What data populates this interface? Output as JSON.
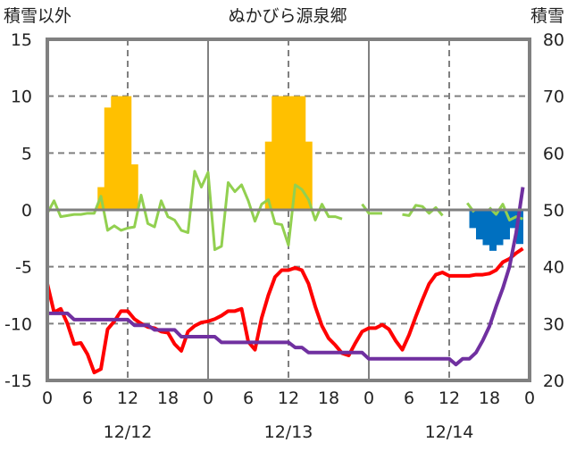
{
  "chart_data": {
    "type": "bar+line",
    "title": "ぬかびら源泉郷",
    "left_axis_title": "積雪以外",
    "right_axis_title": "積雪",
    "left_ylim": [
      -15,
      15
    ],
    "left_ticks": [
      15,
      10,
      5,
      0,
      -5,
      -10,
      -15
    ],
    "right_ylim": [
      20,
      80
    ],
    "right_ticks": [
      80,
      70,
      60,
      50,
      40,
      30,
      20
    ],
    "x_range_hours": [
      0,
      72
    ],
    "x_ticks": [
      {
        "hour": 0,
        "label": "0"
      },
      {
        "hour": 6,
        "label": "6"
      },
      {
        "hour": 12,
        "label": "12"
      },
      {
        "hour": 18,
        "label": "18"
      },
      {
        "hour": 24,
        "label": "0"
      },
      {
        "hour": 30,
        "label": "6"
      },
      {
        "hour": 36,
        "label": "12"
      },
      {
        "hour": 42,
        "label": "18"
      },
      {
        "hour": 48,
        "label": "0"
      },
      {
        "hour": 54,
        "label": "6"
      },
      {
        "hour": 60,
        "label": "12"
      },
      {
        "hour": 66,
        "label": "18"
      },
      {
        "hour": 72,
        "label": "0"
      }
    ],
    "date_labels": [
      {
        "hour": 12,
        "label": "12/12"
      },
      {
        "hour": 36,
        "label": "12/13"
      },
      {
        "hour": 60,
        "label": "12/14"
      }
    ],
    "colors": {
      "orange_bars": "#FFC000",
      "blue_bars": "#0070C0",
      "green": "#92D050",
      "red": "#FF0000",
      "purple": "#7030A0",
      "grid": "#808080"
    },
    "orange_bars": [
      {
        "hour": 8,
        "value": 2
      },
      {
        "hour": 9,
        "value": 9
      },
      {
        "hour": 10,
        "value": 10
      },
      {
        "hour": 11,
        "value": 10
      },
      {
        "hour": 12,
        "value": 10
      },
      {
        "hour": 13,
        "value": 4
      },
      {
        "hour": 33,
        "value": 6
      },
      {
        "hour": 34,
        "value": 10
      },
      {
        "hour": 35,
        "value": 10
      },
      {
        "hour": 36,
        "value": 10
      },
      {
        "hour": 37,
        "value": 10
      },
      {
        "hour": 38,
        "value": 10
      },
      {
        "hour": 39,
        "value": 6
      }
    ],
    "blue_bars": [
      {
        "hour": 64,
        "value": -1.6
      },
      {
        "hour": 65,
        "value": -2.6
      },
      {
        "hour": 66,
        "value": -3.1
      },
      {
        "hour": 67,
        "value": -3.6
      },
      {
        "hour": 68,
        "value": -3.1
      },
      {
        "hour": 69,
        "value": -2.6
      },
      {
        "hour": 70,
        "value": -1.6
      },
      {
        "hour": 71,
        "value": -3.0
      }
    ],
    "green_series": [
      [
        -0.3,
        0.8,
        -0.6,
        -0.5,
        -0.4,
        -0.4,
        -0.3,
        -0.3,
        1.2,
        -1.8,
        -1.4,
        -1.8,
        -1.6,
        -1.5,
        1.3,
        -1.2,
        -1.5,
        0.8,
        -0.6,
        -0.9,
        -1.8,
        -2.0,
        3.4,
        2.0,
        3.3,
        -3.5,
        -3.2,
        2.4,
        1.6,
        2.2,
        0.8,
        -1.0,
        0.5,
        0.9,
        -1.2,
        -1.3,
        -3.1,
        2.2,
        1.8,
        0.9,
        -0.9,
        0.5,
        -0.6,
        -0.6,
        -0.8
      ]
    ],
    "green_segments": [
      {
        "start": 0,
        "values": [
          -0.3,
          0.8,
          -0.6,
          -0.5,
          -0.4,
          -0.4,
          -0.3,
          -0.3,
          1.2,
          -1.8,
          -1.4,
          -1.8,
          -1.6,
          -1.5,
          1.3,
          -1.2,
          -1.5,
          0.8,
          -0.6,
          -0.9,
          -1.8,
          -2.0,
          3.4,
          2.0,
          3.3,
          -3.5,
          -3.2,
          2.4,
          1.6,
          2.2,
          0.8,
          -1.0,
          0.5,
          0.9,
          -1.2,
          -1.3,
          -3.1,
          2.2,
          1.8,
          0.9,
          -0.9,
          0.5,
          -0.6,
          -0.6,
          -0.8
        ]
      },
      {
        "start": 47,
        "values": [
          0.5,
          -0.3,
          -0.3,
          -0.3
        ]
      },
      {
        "start": 53,
        "values": [
          -0.4,
          -0.5,
          0.4,
          0.3,
          -0.3,
          0.2,
          -0.5
        ]
      },
      {
        "start": 62.7,
        "values": [
          0.6,
          -0.2
        ]
      },
      {
        "start": 66,
        "values": [
          0.2,
          -0.4,
          0.5,
          -0.9,
          -0.6,
          -0.8
        ]
      }
    ],
    "red_series": [
      -6.5,
      -9,
      -8.7,
      -10,
      -11.8,
      -11.7,
      -12.7,
      -14.3,
      -14,
      -10.5,
      -9.8,
      -8.9,
      -8.9,
      -9.6,
      -10,
      -10.3,
      -10.4,
      -10.7,
      -10.8,
      -11.8,
      -12.4,
      -10.7,
      -10.2,
      -9.9,
      -9.8,
      -9.6,
      -9.3,
      -8.9,
      -8.9,
      -8.7,
      -11.6,
      -12.3,
      -9.5,
      -7.5,
      -5.9,
      -5.3,
      -5.3,
      -5.1,
      -5.3,
      -6.5,
      -8.5,
      -10.2,
      -11.3,
      -11.9,
      -12.6,
      -12.8,
      -11.7,
      -10.7,
      -10.4,
      -10.4,
      -10.1,
      -10.5,
      -11.5,
      -12.3,
      -11,
      -9.4,
      -7.9,
      -6.5,
      -5.7,
      -5.5,
      -5.8,
      -5.8,
      -5.8,
      -5.8,
      -5.7,
      -5.7,
      -5.6,
      -5.3,
      -4.6,
      -4.3,
      -3.8,
      -3.4
    ],
    "purple_series": [
      31.8,
      31.8,
      31.8,
      31.8,
      30.7,
      30.7,
      30.7,
      30.7,
      30.7,
      30.7,
      30.7,
      30.7,
      30.7,
      29.7,
      29.7,
      29.7,
      28.9,
      28.9,
      28.9,
      28.9,
      27.7,
      27.7,
      27.7,
      27.7,
      27.7,
      27.7,
      26.7,
      26.7,
      26.7,
      26.7,
      26.7,
      26.7,
      26.7,
      26.7,
      26.7,
      26.7,
      26.7,
      25.8,
      25.8,
      24.9,
      24.9,
      24.9,
      24.9,
      24.9,
      24.9,
      24.9,
      24.9,
      24.9,
      23.8,
      23.8,
      23.8,
      23.8,
      23.8,
      23.8,
      23.8,
      23.8,
      23.8,
      23.8,
      23.8,
      23.8,
      23.8,
      22.8,
      23.8,
      23.8,
      24.9,
      27,
      29.5,
      33,
      36.2,
      40,
      46,
      54
    ]
  }
}
